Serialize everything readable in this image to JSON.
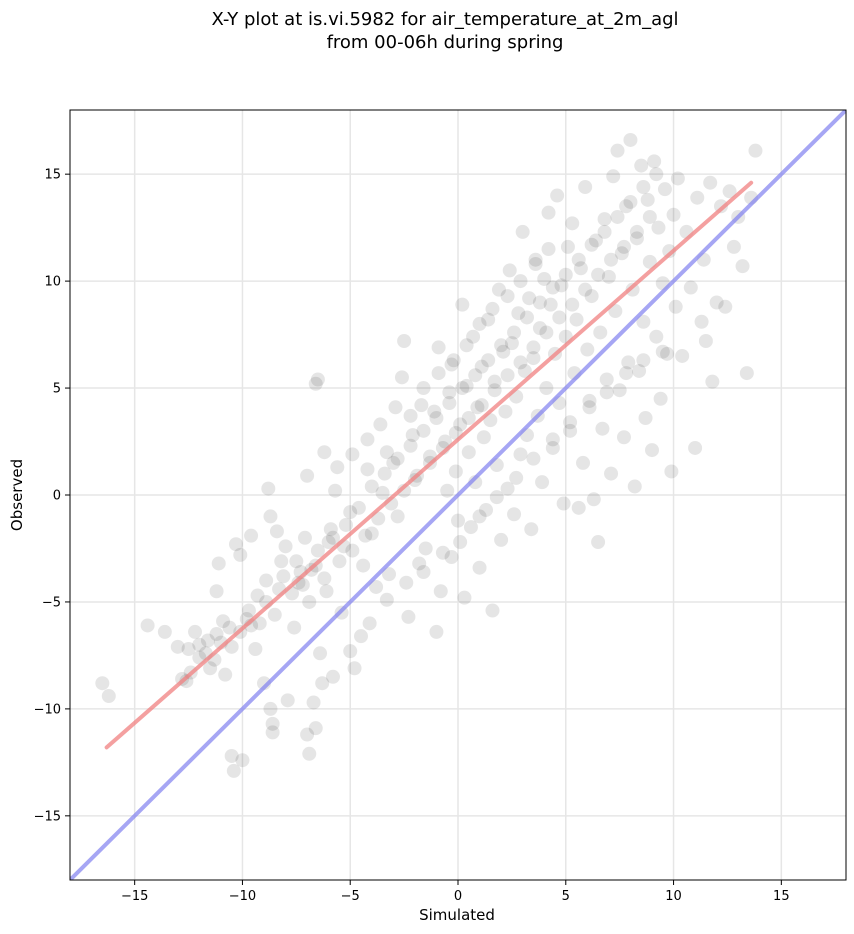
{
  "chart_data": {
    "type": "scatter",
    "title": "X-Y plot at is.vi.5982 for air_temperature_at_2m_agl",
    "subtitle": "from 00-06h during spring",
    "xlabel": "Simulated",
    "ylabel": "Observed",
    "xlim": [
      -18,
      18
    ],
    "ylim": [
      -18,
      18
    ],
    "x_ticks": [
      -15,
      -10,
      -5,
      0,
      5,
      10,
      15
    ],
    "y_ticks": [
      -15,
      -10,
      -5,
      0,
      5,
      10,
      15
    ],
    "x_tick_labels": [
      "−15",
      "−10",
      "−5",
      "0",
      "5",
      "10",
      "15"
    ],
    "y_tick_labels": [
      "−15",
      "−10",
      "−5",
      "0",
      "5",
      "10",
      "15"
    ],
    "grid": true,
    "point_color": "#000000",
    "fit_line_color": "#f08080",
    "identity_line_color": "#8080f0",
    "fit_line": {
      "x": [
        -16.3,
        13.6
      ],
      "y": [
        -11.8,
        14.6
      ]
    },
    "identity_line": {
      "x": [
        -18,
        18
      ],
      "y": [
        -18,
        18
      ]
    },
    "points": [
      [
        -16.5,
        -8.8
      ],
      [
        -16.2,
        -9.4
      ],
      [
        -14.4,
        -6.1
      ],
      [
        -13.6,
        -6.4
      ],
      [
        -12.8,
        -8.6
      ],
      [
        -12.5,
        -7.2
      ],
      [
        -12.4,
        -8.3
      ],
      [
        -12.2,
        -6.4
      ],
      [
        -12.0,
        -7.0
      ],
      [
        -11.7,
        -7.4
      ],
      [
        -11.5,
        -8.1
      ],
      [
        -11.2,
        -6.5
      ],
      [
        -11.0,
        -6.9
      ],
      [
        -11.2,
        -4.5
      ],
      [
        -11.1,
        -3.2
      ],
      [
        -10.8,
        -8.4
      ],
      [
        -10.6,
        -6.2
      ],
      [
        -10.5,
        -12.2
      ],
      [
        -10.4,
        -12.9
      ],
      [
        -10.0,
        -12.4
      ],
      [
        -10.3,
        -2.3
      ],
      [
        -10.1,
        -2.8
      ],
      [
        -9.8,
        -5.8
      ],
      [
        -9.6,
        -6.1
      ],
      [
        -9.4,
        -7.2
      ],
      [
        -9.3,
        -4.7
      ],
      [
        -9.0,
        -8.8
      ],
      [
        -8.9,
        -5.0
      ],
      [
        -8.7,
        -10.0
      ],
      [
        -8.6,
        -10.7
      ],
      [
        -8.6,
        -11.1
      ],
      [
        -8.3,
        -4.4
      ],
      [
        -8.2,
        -3.1
      ],
      [
        -8.8,
        0.3
      ],
      [
        -8.7,
        -1.0
      ],
      [
        -8.4,
        -1.7
      ],
      [
        -7.9,
        -9.6
      ],
      [
        -7.6,
        -6.2
      ],
      [
        -7.4,
        -4.1
      ],
      [
        -7.3,
        -3.6
      ],
      [
        -7.1,
        -2.0
      ],
      [
        -7.0,
        -11.2
      ],
      [
        -6.9,
        -12.1
      ],
      [
        -6.6,
        -10.9
      ],
      [
        -6.9,
        -5.0
      ],
      [
        -6.6,
        -3.3
      ],
      [
        -6.4,
        -7.4
      ],
      [
        -6.3,
        -8.8
      ],
      [
        -6.1,
        -4.5
      ],
      [
        -6.0,
        -2.2
      ],
      [
        -5.9,
        -1.6
      ],
      [
        -6.6,
        5.2
      ],
      [
        -6.5,
        5.4
      ],
      [
        -5.7,
        0.2
      ],
      [
        -5.4,
        -5.5
      ],
      [
        -5.3,
        -2.4
      ],
      [
        -5.0,
        -0.8
      ],
      [
        -4.8,
        -8.1
      ],
      [
        -4.5,
        -6.6
      ],
      [
        -4.4,
        -3.3
      ],
      [
        -4.2,
        1.2
      ],
      [
        -4.0,
        -1.8
      ],
      [
        -3.8,
        -4.3
      ],
      [
        -3.5,
        0.1
      ],
      [
        -3.3,
        2.0
      ],
      [
        -3.2,
        -3.7
      ],
      [
        -3.0,
        1.5
      ],
      [
        -2.8,
        -1.0
      ],
      [
        -2.6,
        5.5
      ],
      [
        -2.5,
        7.2
      ],
      [
        -2.3,
        -5.7
      ],
      [
        -2.1,
        2.8
      ],
      [
        -2.0,
        0.7
      ],
      [
        -1.8,
        -3.2
      ],
      [
        -1.7,
        4.2
      ],
      [
        -1.5,
        -2.5
      ],
      [
        -1.3,
        1.8
      ],
      [
        -1.1,
        3.9
      ],
      [
        -1.0,
        -6.4
      ],
      [
        -0.9,
        6.9
      ],
      [
        -0.8,
        -4.5
      ],
      [
        -0.6,
        2.5
      ],
      [
        -0.5,
        0.2
      ],
      [
        -0.4,
        4.8
      ],
      [
        -0.3,
        -2.9
      ],
      [
        -0.2,
        6.3
      ],
      [
        -0.1,
        1.1
      ],
      [
        0.0,
        -1.2
      ],
      [
        0.1,
        3.3
      ],
      [
        0.2,
        8.9
      ],
      [
        0.3,
        -4.8
      ],
      [
        0.4,
        5.1
      ],
      [
        0.5,
        2.0
      ],
      [
        0.6,
        -1.5
      ],
      [
        0.7,
        7.4
      ],
      [
        0.8,
        0.6
      ],
      [
        0.9,
        4.1
      ],
      [
        1.0,
        -3.4
      ],
      [
        1.1,
        6.0
      ],
      [
        1.2,
        2.7
      ],
      [
        1.3,
        -0.7
      ],
      [
        1.4,
        8.2
      ],
      [
        1.5,
        3.5
      ],
      [
        1.6,
        -5.4
      ],
      [
        1.7,
        5.3
      ],
      [
        1.8,
        1.4
      ],
      [
        1.9,
        9.6
      ],
      [
        2.0,
        -2.1
      ],
      [
        2.1,
        6.7
      ],
      [
        2.2,
        3.9
      ],
      [
        2.3,
        0.3
      ],
      [
        2.4,
        10.5
      ],
      [
        2.5,
        7.1
      ],
      [
        2.6,
        -0.9
      ],
      [
        2.7,
        4.6
      ],
      [
        2.8,
        8.5
      ],
      [
        2.9,
        1.9
      ],
      [
        3.0,
        12.3
      ],
      [
        3.1,
        5.8
      ],
      [
        3.2,
        2.8
      ],
      [
        3.3,
        9.2
      ],
      [
        3.4,
        -1.6
      ],
      [
        3.5,
        6.4
      ],
      [
        3.6,
        11.0
      ],
      [
        3.7,
        3.7
      ],
      [
        3.8,
        7.8
      ],
      [
        3.9,
        0.6
      ],
      [
        4.0,
        10.1
      ],
      [
        4.1,
        5.0
      ],
      [
        4.2,
        13.2
      ],
      [
        4.3,
        8.9
      ],
      [
        4.4,
        2.2
      ],
      [
        4.5,
        6.6
      ],
      [
        4.6,
        14.0
      ],
      [
        4.7,
        4.3
      ],
      [
        4.8,
        9.8
      ],
      [
        4.9,
        -0.4
      ],
      [
        5.0,
        7.4
      ],
      [
        5.1,
        11.6
      ],
      [
        5.2,
        3.0
      ],
      [
        5.3,
        12.7
      ],
      [
        5.4,
        5.7
      ],
      [
        5.5,
        8.2
      ],
      [
        5.6,
        -0.6
      ],
      [
        5.7,
        10.6
      ],
      [
        5.8,
        1.5
      ],
      [
        5.9,
        14.4
      ],
      [
        6.0,
        6.8
      ],
      [
        6.1,
        4.4
      ],
      [
        6.2,
        9.3
      ],
      [
        6.3,
        -0.2
      ],
      [
        6.4,
        11.9
      ],
      [
        6.5,
        -2.2
      ],
      [
        6.6,
        7.6
      ],
      [
        6.7,
        3.1
      ],
      [
        6.8,
        12.9
      ],
      [
        6.9,
        5.4
      ],
      [
        7.0,
        10.2
      ],
      [
        7.1,
        1.0
      ],
      [
        7.2,
        14.9
      ],
      [
        7.3,
        8.6
      ],
      [
        7.4,
        16.1
      ],
      [
        7.5,
        4.9
      ],
      [
        7.6,
        11.3
      ],
      [
        7.7,
        2.7
      ],
      [
        7.8,
        13.5
      ],
      [
        7.9,
        6.2
      ],
      [
        8.0,
        16.6
      ],
      [
        8.1,
        9.6
      ],
      [
        8.2,
        0.4
      ],
      [
        8.3,
        12.0
      ],
      [
        8.4,
        5.8
      ],
      [
        8.5,
        15.4
      ],
      [
        8.6,
        8.1
      ],
      [
        8.7,
        3.6
      ],
      [
        8.8,
        13.8
      ],
      [
        8.9,
        10.9
      ],
      [
        9.0,
        2.1
      ],
      [
        9.1,
        15.6
      ],
      [
        9.2,
        7.4
      ],
      [
        9.3,
        12.5
      ],
      [
        9.4,
        4.5
      ],
      [
        9.5,
        9.9
      ],
      [
        9.6,
        14.3
      ],
      [
        9.7,
        6.6
      ],
      [
        9.8,
        11.4
      ],
      [
        9.9,
        1.1
      ],
      [
        10.0,
        13.1
      ],
      [
        10.1,
        8.8
      ],
      [
        10.2,
        14.8
      ],
      [
        10.4,
        6.5
      ],
      [
        10.6,
        12.3
      ],
      [
        10.8,
        9.7
      ],
      [
        11.0,
        2.2
      ],
      [
        11.1,
        13.9
      ],
      [
        11.3,
        8.1
      ],
      [
        11.4,
        11.0
      ],
      [
        11.5,
        7.2
      ],
      [
        11.7,
        14.6
      ],
      [
        11.8,
        5.3
      ],
      [
        12.0,
        9.0
      ],
      [
        12.2,
        13.5
      ],
      [
        12.4,
        8.8
      ],
      [
        12.6,
        14.2
      ],
      [
        12.8,
        11.6
      ],
      [
        13.0,
        13.0
      ],
      [
        13.2,
        10.7
      ],
      [
        13.4,
        5.7
      ],
      [
        13.6,
        13.9
      ],
      [
        13.8,
        16.1
      ],
      [
        -13.0,
        -7.1
      ],
      [
        -12.6,
        -8.7
      ],
      [
        -12.0,
        -7.6
      ],
      [
        -11.6,
        -6.8
      ],
      [
        -11.3,
        -7.7
      ],
      [
        -10.9,
        -5.9
      ],
      [
        -10.5,
        -7.1
      ],
      [
        -10.1,
        -6.4
      ],
      [
        -9.7,
        -5.4
      ],
      [
        -9.2,
        -6.0
      ],
      [
        -8.9,
        -4.0
      ],
      [
        -8.5,
        -5.6
      ],
      [
        -8.1,
        -3.8
      ],
      [
        -7.7,
        -4.6
      ],
      [
        -7.5,
        -3.1
      ],
      [
        -7.2,
        -4.2
      ],
      [
        -6.8,
        -3.5
      ],
      [
        -6.5,
        -2.6
      ],
      [
        -6.2,
        -3.9
      ],
      [
        -5.8,
        -2.0
      ],
      [
        -5.5,
        -3.1
      ],
      [
        -5.2,
        -1.4
      ],
      [
        -4.9,
        -2.6
      ],
      [
        -4.6,
        -0.6
      ],
      [
        -4.3,
        -1.9
      ],
      [
        -4.0,
        0.4
      ],
      [
        -3.7,
        -1.1
      ],
      [
        -3.4,
        1.0
      ],
      [
        -3.1,
        -0.4
      ],
      [
        -2.8,
        1.7
      ],
      [
        -2.5,
        0.2
      ],
      [
        -2.2,
        2.3
      ],
      [
        -1.9,
        0.9
      ],
      [
        -1.6,
        3.0
      ],
      [
        -1.3,
        1.5
      ],
      [
        -1.0,
        3.6
      ],
      [
        -0.7,
        2.2
      ],
      [
        -0.4,
        4.3
      ],
      [
        -0.1,
        2.9
      ],
      [
        0.2,
        5.0
      ],
      [
        0.5,
        3.6
      ],
      [
        0.8,
        5.6
      ],
      [
        1.1,
        4.2
      ],
      [
        1.4,
        6.3
      ],
      [
        1.7,
        4.9
      ],
      [
        2.0,
        7.0
      ],
      [
        2.3,
        5.6
      ],
      [
        2.6,
        7.6
      ],
      [
        2.9,
        6.2
      ],
      [
        3.2,
        8.3
      ],
      [
        3.5,
        6.9
      ],
      [
        3.8,
        9.0
      ],
      [
        4.1,
        7.6
      ],
      [
        4.4,
        9.7
      ],
      [
        4.7,
        8.3
      ],
      [
        5.0,
        10.3
      ],
      [
        5.3,
        8.9
      ],
      [
        5.6,
        11.0
      ],
      [
        5.9,
        9.6
      ],
      [
        6.2,
        11.7
      ],
      [
        6.5,
        10.3
      ],
      [
        6.8,
        12.3
      ],
      [
        7.1,
        11.0
      ],
      [
        7.4,
        13.0
      ],
      [
        7.7,
        11.6
      ],
      [
        8.0,
        13.7
      ],
      [
        8.3,
        12.3
      ],
      [
        8.6,
        14.4
      ],
      [
        8.9,
        13.0
      ],
      [
        9.2,
        15.0
      ],
      [
        -9.6,
        -1.9
      ],
      [
        -8.0,
        -2.4
      ],
      [
        -7.0,
        0.9
      ],
      [
        -6.2,
        2.0
      ],
      [
        -5.6,
        1.3
      ],
      [
        -4.9,
        1.9
      ],
      [
        -4.2,
        2.6
      ],
      [
        -3.6,
        3.3
      ],
      [
        -2.9,
        4.1
      ],
      [
        -2.2,
        3.7
      ],
      [
        -1.6,
        5.0
      ],
      [
        -0.9,
        5.7
      ],
      [
        -0.3,
        6.1
      ],
      [
        0.4,
        7.0
      ],
      [
        1.0,
        8.0
      ],
      [
        1.6,
        8.7
      ],
      [
        2.3,
        9.3
      ],
      [
        2.9,
        10.0
      ],
      [
        3.6,
        10.8
      ],
      [
        4.2,
        11.5
      ],
      [
        -6.7,
        -9.7
      ],
      [
        -5.8,
        -8.5
      ],
      [
        -5.0,
        -7.3
      ],
      [
        -4.1,
        -6.0
      ],
      [
        -3.3,
        -4.9
      ],
      [
        -2.4,
        -4.1
      ],
      [
        -1.6,
        -3.6
      ],
      [
        -0.7,
        -2.7
      ],
      [
        0.1,
        -2.2
      ],
      [
        1.0,
        -1.0
      ],
      [
        1.8,
        -0.1
      ],
      [
        2.7,
        0.8
      ],
      [
        3.5,
        1.7
      ],
      [
        4.4,
        2.6
      ],
      [
        5.2,
        3.4
      ],
      [
        6.1,
        4.1
      ],
      [
        6.9,
        4.8
      ],
      [
        7.8,
        5.7
      ],
      [
        8.6,
        6.3
      ],
      [
        9.5,
        6.7
      ]
    ]
  }
}
